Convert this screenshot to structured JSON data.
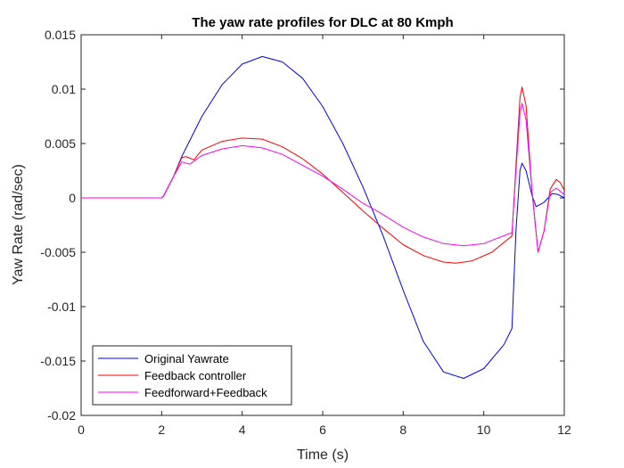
{
  "chart_data": {
    "type": "line",
    "title": "The yaw rate profiles for DLC at 80 Kmph",
    "xlabel": "Time (s)",
    "ylabel": "Yaw Rate (rad/sec)",
    "xlim": [
      0,
      12
    ],
    "ylim": [
      -0.02,
      0.015
    ],
    "xticks": [
      0,
      2,
      4,
      6,
      8,
      10,
      12
    ],
    "yticks": [
      -0.02,
      -0.015,
      -0.01,
      -0.005,
      0,
      0.005,
      0.01,
      0.015
    ],
    "xtick_labels": [
      "0",
      "2",
      "4",
      "6",
      "8",
      "10",
      "12"
    ],
    "ytick_labels": [
      "-0.02",
      "-0.015",
      "-0.01",
      "-0.005",
      "0",
      "0.005",
      "0.01",
      "0.015"
    ],
    "grid": false,
    "legend_position": "bottom-left",
    "series": [
      {
        "name": "Original Yawrate",
        "color": "#0000ff",
        "points": [
          [
            0,
            0
          ],
          [
            2,
            0
          ],
          [
            2.05,
            0.0002
          ],
          [
            2.3,
            0.002
          ],
          [
            2.5,
            0.0038
          ],
          [
            3,
            0.0075
          ],
          [
            3.5,
            0.0104
          ],
          [
            4,
            0.0123
          ],
          [
            4.5,
            0.013
          ],
          [
            5,
            0.0125
          ],
          [
            5.5,
            0.011
          ],
          [
            6,
            0.0084
          ],
          [
            6.5,
            0.005
          ],
          [
            7,
            0.001
          ],
          [
            7.5,
            -0.0035
          ],
          [
            8,
            -0.0085
          ],
          [
            8.5,
            -0.0132
          ],
          [
            9,
            -0.016
          ],
          [
            9.5,
            -0.0166
          ],
          [
            10,
            -0.0157
          ],
          [
            10.5,
            -0.0135
          ],
          [
            10.7,
            -0.012
          ],
          [
            10.8,
            -0.003
          ],
          [
            10.9,
            0.0025
          ],
          [
            10.95,
            0.0032
          ],
          [
            11.05,
            0.0025
          ],
          [
            11.2,
            0.0002
          ],
          [
            11.3,
            -0.0008
          ],
          [
            11.5,
            -0.0004
          ],
          [
            11.7,
            0.0004
          ],
          [
            11.85,
            0.0003
          ],
          [
            12,
            0
          ]
        ]
      },
      {
        "name": "Feedback controller",
        "color": "#ff0000",
        "points": [
          [
            0,
            0
          ],
          [
            2,
            0
          ],
          [
            2.05,
            0.0002
          ],
          [
            2.3,
            0.002
          ],
          [
            2.5,
            0.0037
          ],
          [
            2.6,
            0.0038
          ],
          [
            2.8,
            0.0035
          ],
          [
            3,
            0.0044
          ],
          [
            3.5,
            0.0052
          ],
          [
            4,
            0.0055
          ],
          [
            4.5,
            0.0054
          ],
          [
            5,
            0.0047
          ],
          [
            5.5,
            0.0036
          ],
          [
            6,
            0.0022
          ],
          [
            6.5,
            0.0005
          ],
          [
            7,
            -0.0012
          ],
          [
            7.5,
            -0.0028
          ],
          [
            8,
            -0.0043
          ],
          [
            8.5,
            -0.0053
          ],
          [
            9,
            -0.0059
          ],
          [
            9.3,
            -0.006
          ],
          [
            9.7,
            -0.0058
          ],
          [
            10.2,
            -0.005
          ],
          [
            10.7,
            -0.0035
          ],
          [
            10.8,
            0.003
          ],
          [
            10.9,
            0.0092
          ],
          [
            10.95,
            0.0102
          ],
          [
            11.05,
            0.0085
          ],
          [
            11.2,
            0.0005
          ],
          [
            11.35,
            -0.005
          ],
          [
            11.5,
            -0.003
          ],
          [
            11.65,
            0.0008
          ],
          [
            11.8,
            0.0017
          ],
          [
            11.9,
            0.0014
          ],
          [
            12,
            0.0007
          ]
        ]
      },
      {
        "name": "Feedforward+Feedback",
        "color": "#ff00ff",
        "points": [
          [
            0,
            0
          ],
          [
            2,
            0
          ],
          [
            2.05,
            0.0002
          ],
          [
            2.3,
            0.002
          ],
          [
            2.5,
            0.0033
          ],
          [
            2.7,
            0.0031
          ],
          [
            3,
            0.0039
          ],
          [
            3.5,
            0.0045
          ],
          [
            4,
            0.0048
          ],
          [
            4.5,
            0.0046
          ],
          [
            5,
            0.004
          ],
          [
            5.5,
            0.003
          ],
          [
            6,
            0.002
          ],
          [
            6.5,
            0.0008
          ],
          [
            7,
            -0.0005
          ],
          [
            7.4,
            -0.0013
          ],
          [
            8,
            -0.0027
          ],
          [
            8.5,
            -0.0036
          ],
          [
            9,
            -0.0042
          ],
          [
            9.5,
            -0.0044
          ],
          [
            10,
            -0.0042
          ],
          [
            10.7,
            -0.0032
          ],
          [
            10.8,
            0.0025
          ],
          [
            10.9,
            0.0078
          ],
          [
            10.95,
            0.0087
          ],
          [
            11.05,
            0.0072
          ],
          [
            11.2,
            0.0005
          ],
          [
            11.35,
            -0.005
          ],
          [
            11.5,
            -0.003
          ],
          [
            11.65,
            0.0005
          ],
          [
            11.8,
            0.0009
          ],
          [
            11.9,
            0.0006
          ],
          [
            12,
            0.0003
          ]
        ]
      }
    ]
  }
}
